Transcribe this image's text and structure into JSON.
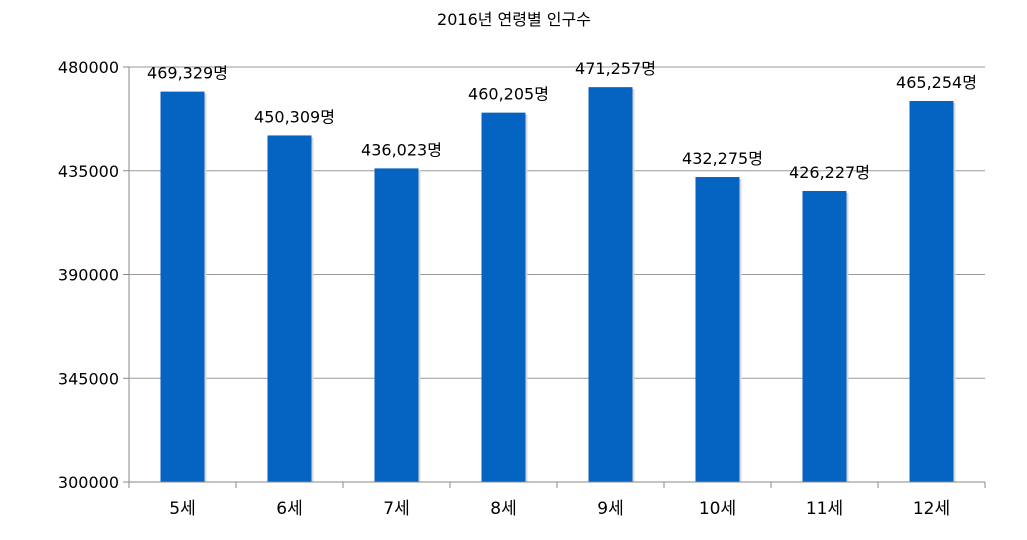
{
  "chart_data": {
    "type": "bar",
    "title": "2016년 연령별 인구수",
    "xlabel": "",
    "ylabel": "",
    "categories": [
      "5세",
      "6세",
      "7세",
      "8세",
      "9세",
      "10세",
      "11세",
      "12세"
    ],
    "values": [
      469329,
      450309,
      436023,
      460205,
      471257,
      432275,
      426227,
      465254
    ],
    "data_labels": [
      "469,329명",
      "450,309명",
      "436,023명",
      "460,205명",
      "471,257명",
      "432,275명",
      "426,227명",
      "465,254명"
    ],
    "ylim": [
      300000,
      480000
    ],
    "yticks": [
      300000,
      345000,
      390000,
      435000,
      480000
    ],
    "ytick_labels": [
      "300000",
      "345000",
      "390000",
      "435000",
      "480000"
    ],
    "grid": true,
    "legend": "none",
    "bar_color": "#0563C1"
  }
}
